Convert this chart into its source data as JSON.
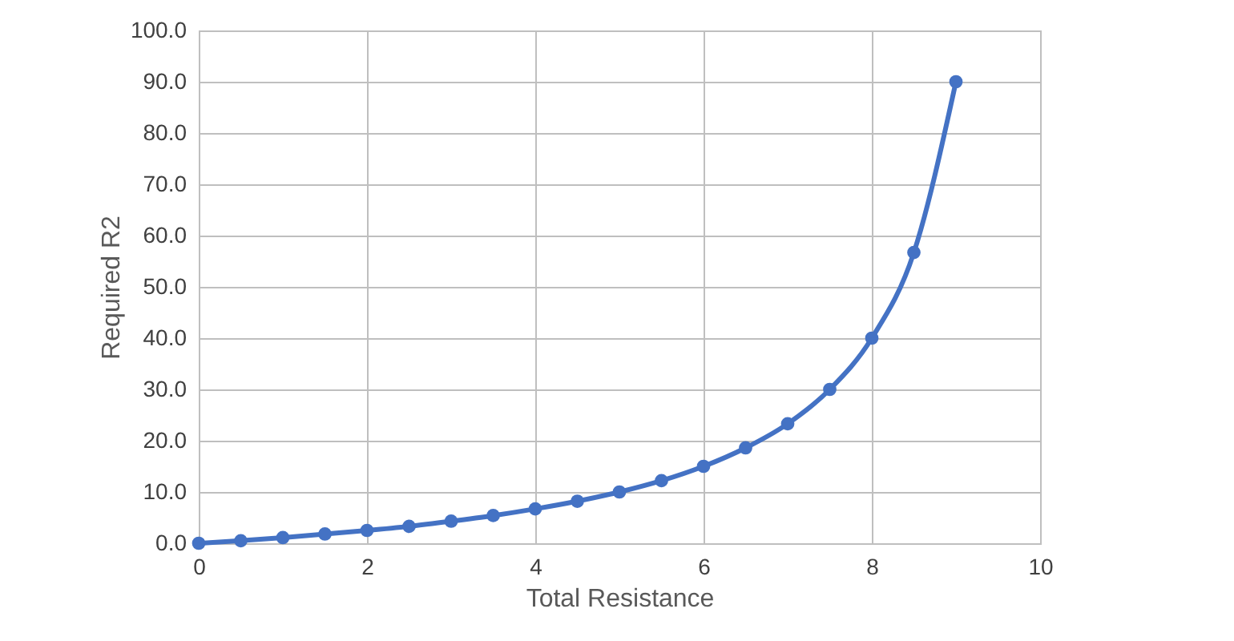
{
  "chart_data": {
    "type": "line",
    "xlabel": "Total Resistance",
    "ylabel": "Required R2",
    "x": [
      0,
      0.5,
      1,
      1.5,
      2,
      2.5,
      3,
      3.5,
      4,
      4.5,
      5,
      5.5,
      6,
      6.5,
      7,
      7.5,
      8,
      8.5,
      9
    ],
    "series": [
      {
        "color": "#4472c4",
        "values": [
          0,
          0.5,
          1.1,
          1.8,
          2.5,
          3.3,
          4.3,
          5.4,
          6.7,
          8.2,
          10,
          12.2,
          15,
          18.6,
          23.3,
          30,
          40,
          56.7,
          90
        ]
      }
    ],
    "xlim": [
      0,
      10
    ],
    "xticks": [
      0,
      2,
      4,
      6,
      8,
      10
    ],
    "ylim": [
      0,
      100
    ],
    "yticks": [
      {
        "value": 0,
        "label": "0.0"
      },
      {
        "value": 10,
        "label": "10.0"
      },
      {
        "value": 20,
        "label": "20.0"
      },
      {
        "value": 30,
        "label": "30.0"
      },
      {
        "value": 40,
        "label": "40.0"
      },
      {
        "value": 50,
        "label": "50.0"
      },
      {
        "value": 60,
        "label": "60.0"
      },
      {
        "value": 70,
        "label": "70.0"
      },
      {
        "value": 80,
        "label": "80.0"
      },
      {
        "value": 90,
        "label": "90.0"
      },
      {
        "value": 100,
        "label": "100.0"
      }
    ],
    "grid": true,
    "marker": "circle",
    "line_style": "solid"
  }
}
